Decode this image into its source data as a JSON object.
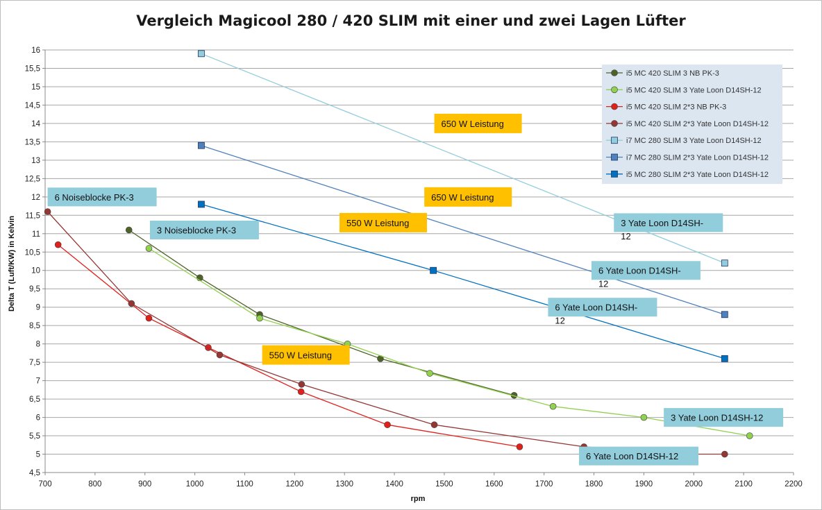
{
  "chart_data": {
    "type": "line",
    "title": "Vergleich Magicool 280 / 420 SLIM mit einer und zwei Lagen Lüfter",
    "xlabel": "rpm",
    "ylabel": "Delta T (Luft/KW) in Kelvin",
    "xlim": [
      700,
      2200
    ],
    "ylim": [
      4.5,
      16
    ],
    "x_ticks": [
      "700",
      "800",
      "900",
      "1000",
      "1100",
      "1200",
      "1300",
      "1400",
      "1500",
      "1600",
      "1700",
      "1800",
      "1900",
      "2000",
      "2100",
      "2200"
    ],
    "y_ticks": [
      "4,5",
      "5",
      "5,5",
      "6",
      "6,5",
      "7",
      "7,5",
      "8",
      "8,5",
      "9",
      "9,5",
      "10",
      "10,5",
      "11",
      "11,5",
      "12",
      "12,5",
      "13",
      "13,5",
      "14",
      "14,5",
      "15",
      "15,5",
      "16"
    ],
    "grid": "horizontal",
    "legend_position": "top-right",
    "series": [
      {
        "name": "i5 MC 420 SLIM 3 NB PK-3",
        "color": "#4f6228",
        "marker": "circle",
        "x": [
          868,
          1010,
          1130,
          1372,
          1640
        ],
        "y": [
          11.1,
          9.8,
          8.8,
          7.6,
          6.6
        ]
      },
      {
        "name": "i5 MC 420 SLIM 3 Yate Loon D14SH-12",
        "color": "#92d050",
        "marker": "circle",
        "x": [
          908,
          1130,
          1306,
          1471,
          1718,
          1900,
          2112
        ],
        "y": [
          10.6,
          8.7,
          8.0,
          7.2,
          6.3,
          6.0,
          5.5
        ]
      },
      {
        "name": "i5 MC 420 SLIM 2*3 NB PK-3",
        "color": "#e0201b",
        "marker": "circle",
        "x": [
          726,
          908,
          1027,
          1213,
          1386,
          1651
        ],
        "y": [
          10.7,
          8.7,
          7.9,
          6.7,
          5.8,
          5.2
        ]
      },
      {
        "name": "i5 MC 420 SLIM 2*3 Yate Loon D14SH-12",
        "color": "#943634",
        "marker": "circle",
        "x": [
          705,
          873,
          1050,
          1214,
          1480,
          1780,
          2000,
          2062
        ],
        "y": [
          11.6,
          9.1,
          7.7,
          6.9,
          5.8,
          5.2,
          5.0,
          5.0
        ]
      },
      {
        "name": "i7 MC 280 SLIM 3 Yate Loon D14SH-12",
        "color": "#93cddd",
        "marker": "square",
        "x": [
          1013,
          2062
        ],
        "y": [
          15.9,
          10.2
        ]
      },
      {
        "name": "i7 MC 280 SLIM 2*3 Yate Loon D14SH-12",
        "color": "#4f81bd",
        "marker": "square",
        "x": [
          1013,
          2062
        ],
        "y": [
          13.4,
          8.8
        ]
      },
      {
        "name": "i5 MC 280 SLIM 2*3 Yate Loon D14SH-12",
        "color": "#0070c0",
        "marker": "square",
        "x": [
          1013,
          1478,
          2062
        ],
        "y": [
          11.8,
          10.0,
          7.6
        ]
      }
    ],
    "annotations": [
      {
        "text": "650 W Leistung",
        "style": "orange",
        "x": 1480,
        "y": 14.0
      },
      {
        "text": "650 W Leistung",
        "style": "orange",
        "x": 1460,
        "y": 12.0
      },
      {
        "text": "550 W Leistung",
        "style": "orange",
        "x": 1290,
        "y": 11.3
      },
      {
        "text": "550 W Leistung",
        "style": "orange",
        "x": 1135,
        "y": 7.7
      },
      {
        "text": "6 Noiseblocke PK-3",
        "style": "blue",
        "x": 705,
        "y": 12.0
      },
      {
        "text": "3 Noiseblocke PK-3",
        "style": "blue",
        "x": 910,
        "y": 11.1
      },
      {
        "text": "3 Yate Loon D14SH-",
        "text2": "12",
        "style": "blue",
        "x": 1840,
        "y": 11.3
      },
      {
        "text": "6 Yate Loon D14SH-",
        "text2": "12",
        "style": "blue",
        "x": 1795,
        "y": 10.0
      },
      {
        "text": "6 Yate Loon D14SH-",
        "text2": "12",
        "style": "blue",
        "x": 1708,
        "y": 9.0
      },
      {
        "text": "3 Yate Loon D14SH-12",
        "style": "blue",
        "x": 1940,
        "y": 6.0
      },
      {
        "text": "6 Yate Loon D14SH-12",
        "style": "blue",
        "x": 1770,
        "y": 4.95
      }
    ]
  },
  "colors": {
    "orange_box": "#ffc000",
    "blue_box": "#92cddc",
    "legend_bg": "#dce6f1",
    "grid": "#a6a6a6"
  }
}
